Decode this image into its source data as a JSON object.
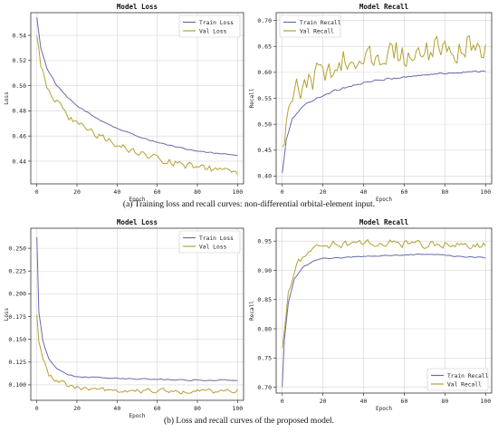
{
  "captions": {
    "a": "(a) Training loss and recall curves: non-differential orbital-element input.",
    "b": "(b)  Loss and recall curves of the proposed model."
  },
  "colors": {
    "train": "#6a6aaa",
    "val": "#b5a032",
    "grid": "#d6d6d6",
    "axis": "#333333"
  },
  "chart_data": [
    {
      "type": "line",
      "title": "Model Loss",
      "xlabel": "Epoch",
      "ylabel": "Loss",
      "xlim": [
        -3,
        103
      ],
      "ylim": [
        0.422,
        0.558
      ],
      "xticks": [
        0,
        20,
        40,
        60,
        80,
        100
      ],
      "yticks": [
        0.44,
        0.46,
        0.48,
        0.5,
        0.52,
        0.54
      ],
      "ytick_labels": [
        "0.44",
        "0.46",
        "0.48",
        "0.50",
        "0.52",
        "0.54"
      ],
      "grid": true,
      "legend_position": "top-right",
      "series": [
        {
          "name": "Train Loss",
          "color": "#6a6aaa",
          "anchors": [
            [
              0,
              0.554
            ],
            [
              2,
              0.53
            ],
            [
              5,
              0.514
            ],
            [
              10,
              0.5
            ],
            [
              15,
              0.491
            ],
            [
              20,
              0.484
            ],
            [
              30,
              0.474
            ],
            [
              40,
              0.466
            ],
            [
              50,
              0.46
            ],
            [
              60,
              0.455
            ],
            [
              70,
              0.451
            ],
            [
              80,
              0.448
            ],
            [
              90,
              0.446
            ],
            [
              100,
              0.445
            ]
          ],
          "noise": 0.0006
        },
        {
          "name": "Val Loss",
          "color": "#b5a032",
          "anchors": [
            [
              0,
              0.54
            ],
            [
              2,
              0.516
            ],
            [
              5,
              0.5
            ],
            [
              10,
              0.487
            ],
            [
              15,
              0.476
            ],
            [
              20,
              0.47
            ],
            [
              30,
              0.461
            ],
            [
              40,
              0.453
            ],
            [
              50,
              0.447
            ],
            [
              60,
              0.442
            ],
            [
              70,
              0.438
            ],
            [
              80,
              0.435
            ],
            [
              90,
              0.433
            ],
            [
              100,
              0.43
            ]
          ],
          "noise": 0.0035
        }
      ]
    },
    {
      "type": "line",
      "title": "Model Recall",
      "xlabel": "Epoch",
      "ylabel": "Recall",
      "xlim": [
        -3,
        103
      ],
      "ylim": [
        0.385,
        0.715
      ],
      "xticks": [
        0,
        20,
        40,
        60,
        80,
        100
      ],
      "yticks": [
        0.4,
        0.45,
        0.5,
        0.55,
        0.6,
        0.65,
        0.7
      ],
      "ytick_labels": [
        "0.40",
        "0.45",
        "0.50",
        "0.55",
        "0.60",
        "0.65",
        "0.70"
      ],
      "grid": true,
      "legend_position": "top-left",
      "series": [
        {
          "name": "Train Recall",
          "color": "#6a6aaa",
          "anchors": [
            [
              0,
              0.405
            ],
            [
              2,
              0.47
            ],
            [
              5,
              0.51
            ],
            [
              10,
              0.535
            ],
            [
              20,
              0.556
            ],
            [
              30,
              0.57
            ],
            [
              40,
              0.58
            ],
            [
              50,
              0.586
            ],
            [
              60,
              0.591
            ],
            [
              70,
              0.595
            ],
            [
              80,
              0.598
            ],
            [
              90,
              0.601
            ],
            [
              100,
              0.603
            ]
          ],
          "noise": 0.0025
        },
        {
          "name": "Val Recall",
          "color": "#b5a032",
          "anchors": [
            [
              0,
              0.465
            ],
            [
              2,
              0.5
            ],
            [
              5,
              0.545
            ],
            [
              10,
              0.575
            ],
            [
              20,
              0.6
            ],
            [
              30,
              0.615
            ],
            [
              40,
              0.625
            ],
            [
              50,
              0.63
            ],
            [
              60,
              0.635
            ],
            [
              70,
              0.64
            ],
            [
              80,
              0.645
            ],
            [
              90,
              0.648
            ],
            [
              100,
              0.65
            ]
          ],
          "noise": 0.028
        }
      ]
    },
    {
      "type": "line",
      "title": "Model Loss",
      "xlabel": "Epoch",
      "ylabel": "Loss",
      "xlim": [
        -3,
        103
      ],
      "ylim": [
        0.083,
        0.272
      ],
      "xticks": [
        0,
        20,
        40,
        60,
        80,
        100
      ],
      "yticks": [
        0.1,
        0.125,
        0.15,
        0.175,
        0.2,
        0.225,
        0.25
      ],
      "ytick_labels": [
        "0.100",
        "0.125",
        "0.150",
        "0.175",
        "0.200",
        "0.225",
        "0.250"
      ],
      "grid": true,
      "legend_position": "top-right",
      "series": [
        {
          "name": "Train Loss",
          "color": "#6a6aaa",
          "anchors": [
            [
              0,
              0.262
            ],
            [
              1,
              0.18
            ],
            [
              3,
              0.148
            ],
            [
              6,
              0.128
            ],
            [
              10,
              0.118
            ],
            [
              15,
              0.112
            ],
            [
              20,
              0.109
            ],
            [
              40,
              0.107
            ],
            [
              60,
              0.106
            ],
            [
              80,
              0.105
            ],
            [
              100,
              0.105
            ]
          ],
          "noise": 0.0008
        },
        {
          "name": "Val Loss",
          "color": "#b5a032",
          "anchors": [
            [
              0,
              0.178
            ],
            [
              1,
              0.15
            ],
            [
              3,
              0.128
            ],
            [
              6,
              0.112
            ],
            [
              10,
              0.104
            ],
            [
              15,
              0.1
            ],
            [
              20,
              0.097
            ],
            [
              40,
              0.094
            ],
            [
              60,
              0.093
            ],
            [
              80,
              0.093
            ],
            [
              100,
              0.093
            ]
          ],
          "noise": 0.0035
        }
      ]
    },
    {
      "type": "line",
      "title": "Model Recall",
      "xlabel": "Epoch",
      "ylabel": "Recall",
      "xlim": [
        -3,
        103
      ],
      "ylim": [
        0.69,
        0.972
      ],
      "xticks": [
        0,
        20,
        40,
        60,
        80,
        100
      ],
      "yticks": [
        0.7,
        0.75,
        0.8,
        0.85,
        0.9,
        0.95
      ],
      "ytick_labels": [
        "0.70",
        "0.75",
        "0.80",
        "0.85",
        "0.90",
        "0.95"
      ],
      "grid": true,
      "legend_position": "bottom-right",
      "series": [
        {
          "name": "Train Recall",
          "color": "#6a6aaa",
          "anchors": [
            [
              0,
              0.7
            ],
            [
              1,
              0.78
            ],
            [
              3,
              0.845
            ],
            [
              6,
              0.885
            ],
            [
              10,
              0.905
            ],
            [
              15,
              0.915
            ],
            [
              20,
              0.92
            ],
            [
              40,
              0.924
            ],
            [
              60,
              0.926
            ],
            [
              70,
              0.928
            ],
            [
              80,
              0.926
            ],
            [
              90,
              0.923
            ],
            [
              100,
              0.922
            ]
          ],
          "noise": 0.0012
        },
        {
          "name": "Val Recall",
          "color": "#b5a032",
          "anchors": [
            [
              0,
              0.77
            ],
            [
              1,
              0.8
            ],
            [
              3,
              0.86
            ],
            [
              6,
              0.9
            ],
            [
              10,
              0.925
            ],
            [
              15,
              0.938
            ],
            [
              20,
              0.943
            ],
            [
              40,
              0.945
            ],
            [
              60,
              0.946
            ],
            [
              80,
              0.944
            ],
            [
              100,
              0.942
            ]
          ],
          "noise": 0.008
        }
      ]
    }
  ]
}
